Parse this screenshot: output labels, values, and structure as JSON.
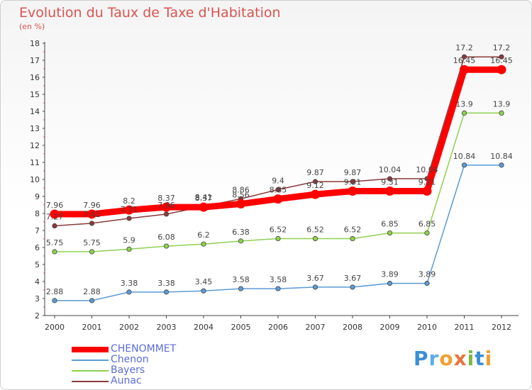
{
  "header": {
    "title": "Evolution du Taux de Taxe d'Habitation",
    "subtitle": "(en %)"
  },
  "legend": {
    "items": [
      "CHENOMMET",
      "Chenon",
      "Bayers",
      "Aunac"
    ]
  },
  "logo": {
    "text": "Proxiti"
  },
  "chart_data": {
    "type": "line",
    "categories": [
      "2000",
      "2001",
      "2002",
      "2003",
      "2004",
      "2005",
      "2006",
      "2007",
      "2008",
      "2009",
      "2010",
      "2011",
      "2012"
    ],
    "ylim": [
      2,
      18
    ],
    "yticks": [
      2,
      3,
      4,
      5,
      6,
      7,
      8,
      9,
      10,
      11,
      12,
      13,
      14,
      15,
      16,
      17,
      18
    ],
    "grid": false,
    "legend_position": "bottom-left",
    "series": [
      {
        "name": "CHENOMMET",
        "color": "#ff0000",
        "values": [
          7.96,
          7.96,
          8.2,
          8.37,
          8.37,
          8.56,
          8.85,
          9.12,
          9.31,
          9.31,
          9.31,
          16.45,
          16.45
        ]
      },
      {
        "name": "Chenon",
        "color": "#5b9bd5",
        "values": [
          2.88,
          2.88,
          3.38,
          3.38,
          3.45,
          3.58,
          3.58,
          3.67,
          3.67,
          3.89,
          3.89,
          10.84,
          10.84
        ]
      },
      {
        "name": "Bayers",
        "color": "#8fd14f",
        "values": [
          5.75,
          5.75,
          5.9,
          6.08,
          6.2,
          6.38,
          6.52,
          6.52,
          6.52,
          6.85,
          6.85,
          13.9,
          13.9
        ]
      },
      {
        "name": "Aunac",
        "color": "#8b3a3a",
        "values": [
          7.27,
          7.42,
          7.71,
          7.96,
          8.41,
          8.86,
          9.4,
          9.87,
          9.87,
          10.04,
          10.04,
          17.2,
          17.2
        ]
      }
    ],
    "data_labels": {
      "CHENOMMET": [
        "7.96",
        "7.96",
        "8.2",
        "8.37",
        "8.37",
        "8.56",
        "8.85",
        "9.12",
        "9.31",
        "9.31",
        "9.31",
        "16.45",
        "16.45"
      ],
      "Chenon": [
        "2.88",
        "2.88",
        "3.38",
        "3.38",
        "3.45",
        "3.58",
        "3.58",
        "3.67",
        "3.67",
        "3.89",
        "3.89",
        "10.84",
        "10.84"
      ],
      "Bayers": [
        "5.75",
        "5.75",
        "5.9",
        "6.08",
        "6.2",
        "6.38",
        "6.52",
        "6.52",
        "6.52",
        "6.85",
        "6.85",
        "13.9",
        "13.9"
      ],
      "Aunac": [
        "7.27",
        "7.42",
        "7.71",
        "7.96",
        "8.41",
        "8.86",
        "9.4",
        "9.87",
        "9.87",
        "10.04",
        "10.04",
        "17.2",
        "17.2"
      ]
    }
  }
}
